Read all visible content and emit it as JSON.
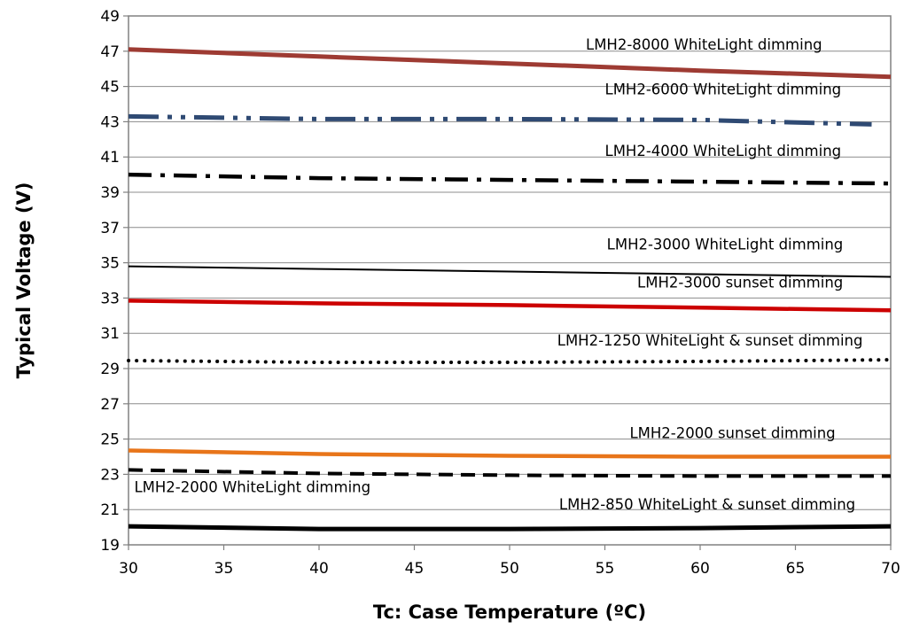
{
  "chart_data": {
    "type": "line",
    "xlabel": "Tc: Case Temperature (ºC)",
    "ylabel": "Typical Voltage (V)",
    "xlim": [
      30,
      70
    ],
    "ylim": [
      19,
      49
    ],
    "x_ticks": [
      "30",
      "35",
      "40",
      "45",
      "50",
      "55",
      "60",
      "65",
      "70"
    ],
    "y_ticks": [
      "19",
      "21",
      "23",
      "25",
      "27",
      "29",
      "31",
      "33",
      "35",
      "37",
      "39",
      "41",
      "43",
      "45",
      "47",
      "49"
    ],
    "grid": "horizontal",
    "legend": "none",
    "series": [
      {
        "name": "LMH2-8000 WhiteLight dimming",
        "color": "#9e3b33",
        "style": "solid-thick",
        "x": [
          30,
          40,
          50,
          60,
          70
        ],
        "y": [
          47.1,
          46.7,
          46.3,
          45.9,
          45.55
        ]
      },
      {
        "name": "LMH2-6000 WhiteLight dimming",
        "color": "#2f4a73",
        "style": "long-dash-dot-dot",
        "x": [
          30,
          40,
          50,
          60,
          69
        ],
        "y": [
          43.3,
          43.15,
          43.15,
          43.1,
          42.85
        ]
      },
      {
        "name": "LMH2-4000 WhiteLight dimming",
        "color": "#000000",
        "style": "dash-dot",
        "x": [
          30,
          40,
          50,
          60,
          70
        ],
        "y": [
          40.0,
          39.8,
          39.7,
          39.6,
          39.5
        ]
      },
      {
        "name": "LMH2-3000 WhiteLight dimming",
        "color": "#000000",
        "style": "solid-thin",
        "x": [
          30,
          40,
          50,
          60,
          70
        ],
        "y": [
          34.8,
          34.65,
          34.5,
          34.35,
          34.2
        ]
      },
      {
        "name": "LMH2-3000 sunset dimming",
        "color": "#cc0000",
        "style": "solid-medium",
        "x": [
          30,
          40,
          50,
          60,
          70
        ],
        "y": [
          32.85,
          32.7,
          32.6,
          32.45,
          32.3
        ]
      },
      {
        "name": "LMH2-1250 WhiteLight & sunset dimming",
        "color": "#000000",
        "style": "dotted",
        "x": [
          30,
          40,
          50,
          60,
          70
        ],
        "y": [
          29.45,
          29.35,
          29.35,
          29.4,
          29.5
        ]
      },
      {
        "name": "LMH2-2000 sunset dimming",
        "color": "#e8751a",
        "style": "solid-medium",
        "x": [
          30,
          40,
          50,
          60,
          70
        ],
        "y": [
          24.35,
          24.15,
          24.05,
          24.0,
          24.0
        ]
      },
      {
        "name": "LMH2-2000 WhiteLight dimming",
        "color": "#000000",
        "style": "dashed",
        "x": [
          30,
          40,
          50,
          60,
          70
        ],
        "y": [
          23.25,
          23.05,
          22.95,
          22.9,
          22.9
        ]
      },
      {
        "name": "LMH2-850 WhiteLight & sunset dimming",
        "color": "#000000",
        "style": "solid-thick",
        "x": [
          30,
          40,
          50,
          60,
          70
        ],
        "y": [
          20.05,
          19.9,
          19.9,
          19.95,
          20.05
        ]
      }
    ],
    "annotations": [
      {
        "text": "LMH2-8000 WhiteLight dimming",
        "x": 54.0,
        "y": 47.1
      },
      {
        "text": "LMH2-6000 WhiteLight dimming",
        "x": 55.0,
        "y": 44.55
      },
      {
        "text": "LMH2-4000 WhiteLight dimming",
        "x": 55.0,
        "y": 41.05
      },
      {
        "text": "LMH2-3000 WhiteLight dimming",
        "x": 55.1,
        "y": 35.75
      },
      {
        "text": "LMH2-3000 sunset dimming",
        "x": 56.7,
        "y": 33.6
      },
      {
        "text": "LMH2-1250 WhiteLight & sunset dimming",
        "x": 52.5,
        "y": 30.3
      },
      {
        "text": "LMH2-2000 sunset dimming",
        "x": 56.3,
        "y": 25.05
      },
      {
        "text": "LMH2-2000 WhiteLight dimming",
        "x": 30.3,
        "y": 22.0
      },
      {
        "text": "LMH2-850 WhiteLight & sunset dimming",
        "x": 52.6,
        "y": 21.0
      }
    ]
  }
}
